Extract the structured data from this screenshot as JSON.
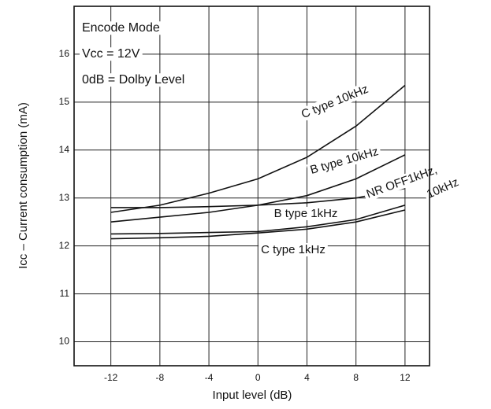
{
  "chart_data": {
    "type": "line",
    "xlabel": "Input level (dB)",
    "ylabel": "Icc – Current consumption (mA)",
    "notes": [
      "Encode Mode",
      "Vcc = 12V",
      "0dB = Dolby Level"
    ],
    "x": [
      -12,
      -8,
      -4,
      0,
      4,
      8,
      12
    ],
    "series": [
      {
        "name": "C type 10kHz",
        "color": "#111111",
        "values": [
          12.7,
          12.85,
          13.1,
          13.4,
          13.85,
          14.5,
          15.35
        ]
      },
      {
        "name": "B type 10kHz",
        "color": "#111111",
        "values": [
          12.5,
          12.6,
          12.7,
          12.85,
          13.05,
          13.4,
          13.9
        ]
      },
      {
        "name_lines": [
          "NR OFF1kHz,",
          "10kHz"
        ],
        "color": "#111111",
        "values": [
          12.8,
          12.8,
          12.82,
          12.85,
          12.9,
          13.0,
          13.2
        ]
      },
      {
        "name": "B type 1kHz",
        "color": "#111111",
        "values": [
          12.25,
          12.26,
          12.28,
          12.3,
          12.4,
          12.55,
          12.85
        ]
      },
      {
        "name": "C type 1kHz",
        "color": "#111111",
        "values": [
          12.15,
          12.17,
          12.2,
          12.27,
          12.35,
          12.5,
          12.75
        ]
      }
    ],
    "xlim": [
      -15,
      14
    ],
    "xticks": [
      -12,
      -8,
      -4,
      0,
      4,
      8,
      12
    ],
    "ylim": [
      9.5,
      17
    ],
    "yticks": [
      10,
      11,
      12,
      13,
      14,
      15,
      16
    ],
    "grid": true
  }
}
